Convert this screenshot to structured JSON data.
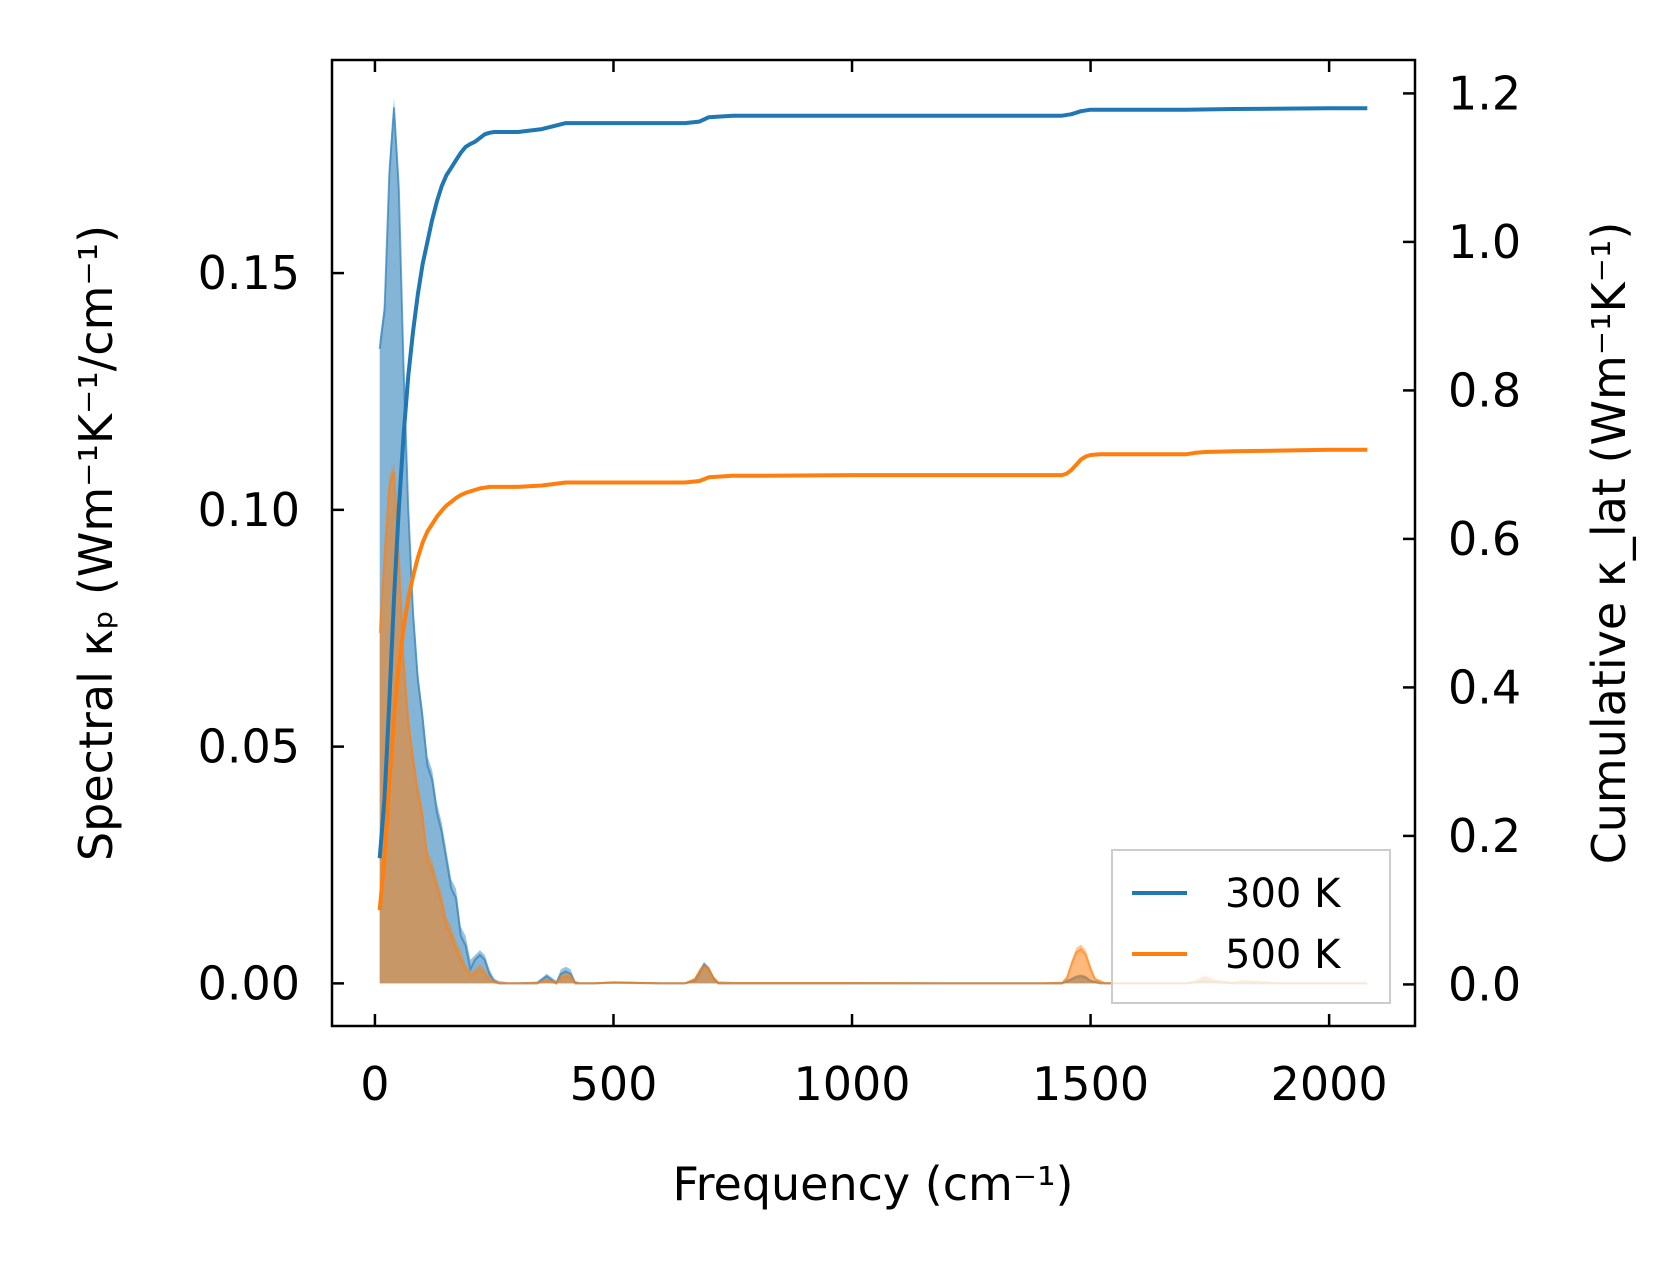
{
  "chart_data": {
    "type": "area",
    "xlabel": "Frequency (cm⁻¹)",
    "ylabel_left": "Spectral κₚ (Wm⁻¹K⁻¹/cm⁻¹)",
    "ylabel_right": "Cumulative κ_lat (Wm⁻¹K⁻¹)",
    "xlim": [
      -90,
      2180
    ],
    "ylim_left": [
      -0.009,
      0.195
    ],
    "ylim_right": [
      -0.056,
      1.245
    ],
    "x_ticks": [
      0,
      500,
      1000,
      1500,
      2000
    ],
    "x_tick_labels": [
      "0",
      "500",
      "1000",
      "1500",
      "2000"
    ],
    "y_left_ticks": [
      0.0,
      0.05,
      0.1,
      0.15
    ],
    "y_left_tick_labels": [
      "0.00",
      "0.05",
      "0.10",
      "0.15"
    ],
    "y_right_ticks": [
      0.0,
      0.2,
      0.4,
      0.6,
      0.8,
      1.0,
      1.2
    ],
    "y_right_tick_labels": [
      "0.0",
      "0.2",
      "0.4",
      "0.6",
      "0.8",
      "1.0",
      "1.2"
    ],
    "legend_position": "lower right",
    "series": [
      {
        "name": "300 K",
        "color": "#1f77b4",
        "spectral": {
          "x": [
            10,
            20,
            30,
            40,
            50,
            60,
            70,
            80,
            90,
            100,
            110,
            120,
            130,
            140,
            150,
            160,
            170,
            180,
            190,
            200,
            210,
            220,
            230,
            240,
            250,
            260,
            280,
            300,
            340,
            360,
            380,
            390,
            400,
            410,
            420,
            430,
            460,
            500,
            600,
            650,
            670,
            680,
            690,
            700,
            710,
            720,
            750,
            800,
            900,
            1000,
            1200,
            1400,
            1440,
            1460,
            1470,
            1480,
            1490,
            1500,
            1520,
            1560,
            1700,
            1740,
            1800,
            1900,
            2000,
            2080
          ],
          "y": [
            0.134,
            0.142,
            0.171,
            0.185,
            0.168,
            0.13,
            0.1,
            0.078,
            0.064,
            0.056,
            0.046,
            0.043,
            0.036,
            0.032,
            0.026,
            0.02,
            0.018,
            0.01,
            0.008,
            0.003,
            0.005,
            0.006,
            0.005,
            0.002,
            0.0005,
            0.0,
            0.0,
            0.0,
            0.0,
            0.0015,
            0.0,
            0.002,
            0.0025,
            0.002,
            0.0,
            0.0,
            0.0,
            0.0002,
            0.0,
            0.0,
            0.0005,
            0.002,
            0.004,
            0.003,
            0.001,
            0.0,
            0.0,
            0.0,
            0.0,
            0.0,
            0.0,
            0.0,
            0.0,
            0.0008,
            0.0013,
            0.0015,
            0.0012,
            0.0005,
            0.0,
            0.0,
            0.0,
            0.0004,
            0.0,
            0.0,
            0.0,
            0.0
          ],
          "band_upper": [
            0.136,
            0.144,
            0.173,
            0.187,
            0.17,
            0.132,
            0.102,
            0.08,
            0.066,
            0.058,
            0.048,
            0.045,
            0.038,
            0.034,
            0.028,
            0.022,
            0.02,
            0.012,
            0.01,
            0.005,
            0.006,
            0.007,
            0.006,
            0.003,
            0.001,
            0.0005,
            0.0002,
            0.0002,
            0.0004,
            0.002,
            0.0006,
            0.003,
            0.0035,
            0.003,
            0.0005,
            0.0002,
            0.0002,
            0.0004,
            0.0002,
            0.0002,
            0.001,
            0.003,
            0.0045,
            0.0035,
            0.0015,
            0.0004,
            0.0003,
            0.0003,
            0.0003,
            0.0003,
            0.0002,
            0.0002,
            0.0003,
            0.0012,
            0.0017,
            0.0019,
            0.0016,
            0.0008,
            0.0002,
            0.0002,
            0.0002,
            0.0008,
            0.0002,
            0.0002,
            0.0002,
            0.0002
          ]
        },
        "cumulative": {
          "x": [
            10,
            20,
            30,
            40,
            50,
            60,
            70,
            80,
            90,
            100,
            110,
            120,
            130,
            140,
            150,
            160,
            170,
            180,
            190,
            200,
            210,
            220,
            230,
            240,
            250,
            300,
            350,
            400,
            500,
            650,
            680,
            700,
            750,
            800,
            1000,
            1200,
            1440,
            1460,
            1480,
            1500,
            1700,
            1800,
            2000,
            2080
          ],
          "y": [
            0.17,
            0.25,
            0.38,
            0.52,
            0.64,
            0.74,
            0.82,
            0.88,
            0.93,
            0.97,
            1.0,
            1.03,
            1.055,
            1.075,
            1.09,
            1.1,
            1.11,
            1.12,
            1.128,
            1.132,
            1.135,
            1.14,
            1.145,
            1.147,
            1.148,
            1.148,
            1.152,
            1.16,
            1.16,
            1.16,
            1.162,
            1.168,
            1.17,
            1.17,
            1.17,
            1.17,
            1.17,
            1.172,
            1.176,
            1.178,
            1.178,
            1.179,
            1.18,
            1.18
          ]
        }
      },
      {
        "name": "500 K",
        "color": "#ff7f0e",
        "spectral": {
          "x": [
            10,
            20,
            30,
            40,
            50,
            60,
            70,
            80,
            90,
            100,
            110,
            120,
            130,
            140,
            150,
            160,
            170,
            180,
            190,
            200,
            210,
            220,
            230,
            240,
            250,
            260,
            280,
            300,
            340,
            360,
            380,
            390,
            400,
            410,
            420,
            430,
            460,
            500,
            600,
            650,
            670,
            680,
            690,
            700,
            710,
            720,
            750,
            800,
            900,
            1000,
            1200,
            1400,
            1440,
            1450,
            1460,
            1470,
            1480,
            1490,
            1500,
            1510,
            1530,
            1600,
            1700,
            1720,
            1740,
            1760,
            1800,
            1820,
            1900,
            2000,
            2080
          ],
          "y": [
            0.074,
            0.09,
            0.105,
            0.108,
            0.09,
            0.068,
            0.055,
            0.047,
            0.04,
            0.035,
            0.026,
            0.024,
            0.02,
            0.017,
            0.012,
            0.01,
            0.007,
            0.005,
            0.003,
            0.0015,
            0.002,
            0.003,
            0.002,
            0.0008,
            0.0002,
            0.0,
            0.0,
            0.0,
            0.0,
            0.0006,
            0.0,
            0.001,
            0.0015,
            0.0012,
            0.0,
            0.0,
            0.0,
            0.0001,
            0.0,
            0.0,
            0.0008,
            0.0025,
            0.0035,
            0.003,
            0.001,
            0.0,
            0.0,
            0.0,
            0.0,
            0.0,
            0.0,
            0.0,
            0.0,
            0.001,
            0.004,
            0.0065,
            0.0072,
            0.006,
            0.003,
            0.0008,
            0.0,
            0.0,
            0.0,
            0.0003,
            0.0012,
            0.0004,
            0.0,
            0.0004,
            0.0,
            0.0,
            0.0
          ],
          "band_upper": [
            0.076,
            0.092,
            0.107,
            0.11,
            0.092,
            0.07,
            0.057,
            0.049,
            0.042,
            0.037,
            0.028,
            0.026,
            0.022,
            0.019,
            0.014,
            0.012,
            0.009,
            0.007,
            0.004,
            0.0025,
            0.003,
            0.004,
            0.003,
            0.0015,
            0.0006,
            0.0003,
            0.0002,
            0.0002,
            0.0003,
            0.001,
            0.0004,
            0.0018,
            0.0022,
            0.002,
            0.0005,
            0.0002,
            0.0002,
            0.0004,
            0.0002,
            0.0002,
            0.0012,
            0.003,
            0.004,
            0.0035,
            0.0015,
            0.0004,
            0.0003,
            0.0003,
            0.0003,
            0.0003,
            0.0002,
            0.0002,
            0.0004,
            0.0015,
            0.0048,
            0.0075,
            0.0082,
            0.007,
            0.0038,
            0.0012,
            0.0003,
            0.0002,
            0.0002,
            0.0008,
            0.0018,
            0.0009,
            0.0003,
            0.0008,
            0.0002,
            0.0002,
            0.0002
          ]
        },
        "cumulative": {
          "x": [
            10,
            20,
            30,
            40,
            50,
            60,
            70,
            80,
            90,
            100,
            110,
            120,
            130,
            140,
            150,
            160,
            170,
            180,
            190,
            200,
            210,
            220,
            230,
            240,
            250,
            300,
            350,
            400,
            500,
            650,
            680,
            700,
            750,
            800,
            1000,
            1200,
            1440,
            1450,
            1460,
            1470,
            1480,
            1490,
            1500,
            1520,
            1700,
            1720,
            1740,
            1800,
            2000,
            2080
          ],
          "y": [
            0.1,
            0.17,
            0.27,
            0.36,
            0.43,
            0.48,
            0.52,
            0.55,
            0.575,
            0.595,
            0.61,
            0.62,
            0.63,
            0.638,
            0.645,
            0.65,
            0.655,
            0.659,
            0.662,
            0.664,
            0.666,
            0.668,
            0.669,
            0.67,
            0.67,
            0.67,
            0.672,
            0.676,
            0.676,
            0.676,
            0.678,
            0.683,
            0.685,
            0.685,
            0.686,
            0.686,
            0.686,
            0.688,
            0.693,
            0.7,
            0.707,
            0.711,
            0.713,
            0.714,
            0.714,
            0.716,
            0.717,
            0.718,
            0.72,
            0.72
          ]
        }
      }
    ]
  }
}
